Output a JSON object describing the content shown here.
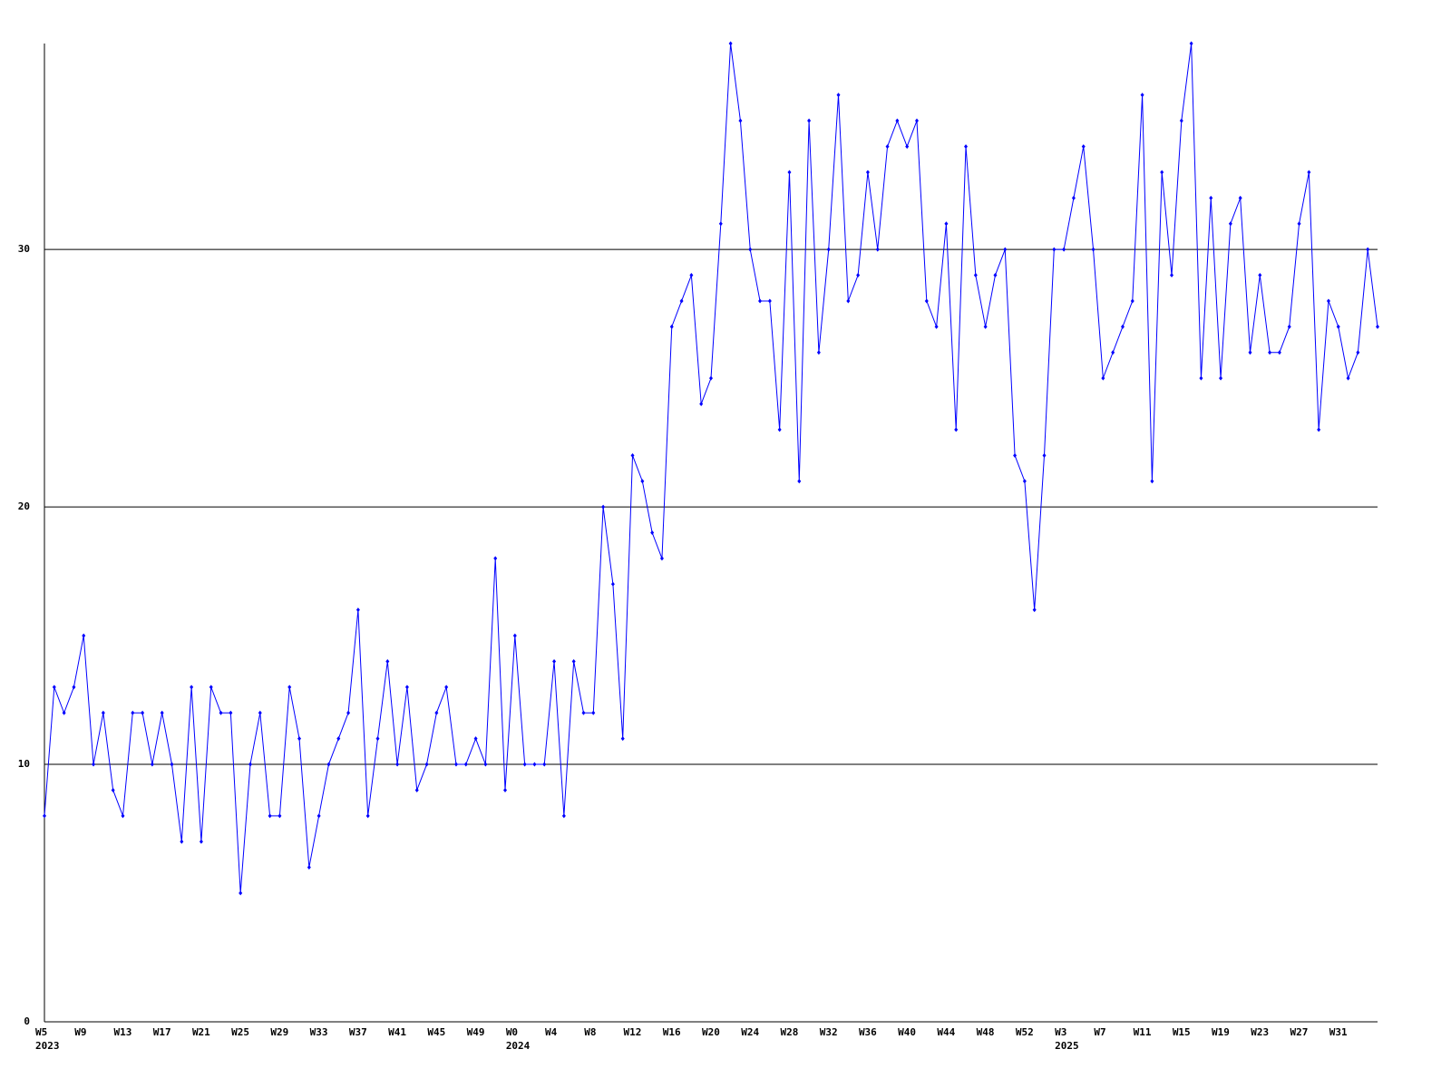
{
  "chart_data": {
    "type": "line",
    "categories": [
      "W5",
      null,
      null,
      null,
      "W9",
      null,
      null,
      null,
      "W13",
      null,
      null,
      null,
      "W17",
      null,
      null,
      null,
      "W21",
      null,
      null,
      null,
      "W25",
      null,
      null,
      null,
      "W29",
      null,
      null,
      null,
      "W33",
      null,
      null,
      null,
      "W37",
      null,
      null,
      null,
      "W41",
      null,
      null,
      null,
      "W45",
      null,
      null,
      null,
      "W49",
      null,
      null,
      null,
      "W0",
      null,
      null,
      null,
      "W4",
      null,
      null,
      null,
      "W8",
      null,
      null,
      null,
      "W12",
      null,
      null,
      null,
      "W16",
      null,
      null,
      null,
      "W20",
      null,
      null,
      null,
      "W24",
      null,
      null,
      null,
      "W28",
      null,
      null,
      null,
      "W32",
      null,
      null,
      null,
      "W36",
      null,
      null,
      null,
      "W40",
      null,
      null,
      null,
      "W44",
      null,
      null,
      null,
      "W48",
      null,
      null,
      null,
      "W52",
      null,
      null,
      null,
      "W3",
      null,
      null,
      null,
      "W7",
      null,
      null,
      null,
      "W11",
      null,
      null,
      null,
      "W15",
      null,
      null,
      null,
      "W19",
      null,
      null,
      null,
      "W23",
      null,
      null,
      null,
      "W27",
      null,
      null,
      null,
      "W31",
      null,
      null,
      null,
      null
    ],
    "category_years": [
      "2023",
      null,
      null,
      null,
      null,
      null,
      null,
      null,
      null,
      null,
      null,
      null,
      null,
      null,
      null,
      null,
      null,
      null,
      null,
      null,
      null,
      null,
      null,
      null,
      null,
      null,
      null,
      null,
      null,
      null,
      null,
      null,
      null,
      null,
      null,
      null,
      null,
      null,
      null,
      null,
      null,
      null,
      null,
      null,
      null,
      null,
      null,
      null,
      "2024",
      null,
      null,
      null,
      null,
      null,
      null,
      null,
      null,
      null,
      null,
      null,
      null,
      null,
      null,
      null,
      null,
      null,
      null,
      null,
      null,
      null,
      null,
      null,
      null,
      null,
      null,
      null,
      null,
      null,
      null,
      null,
      null,
      null,
      null,
      null,
      null,
      null,
      null,
      null,
      null,
      null,
      null,
      null,
      null,
      null,
      null,
      null,
      null,
      null,
      null,
      null,
      null,
      null,
      null,
      null,
      "2025",
      null,
      null,
      null,
      null,
      null,
      null,
      null,
      null,
      null,
      null,
      null,
      null,
      null,
      null,
      null,
      null,
      null,
      null,
      null,
      null,
      null,
      null,
      null,
      null,
      null,
      null,
      null,
      null,
      null,
      null,
      null
    ],
    "series": [
      {
        "color": "#0000ff",
        "values": [
          8,
          13,
          12,
          13,
          15,
          10,
          12,
          9,
          8,
          12,
          12,
          10,
          12,
          10,
          7,
          13,
          7,
          13,
          12,
          12,
          5,
          10,
          12,
          8,
          8,
          13,
          11,
          6,
          8,
          10,
          11,
          12,
          16,
          8,
          11,
          14,
          10,
          13,
          9,
          10,
          12,
          13,
          10,
          10,
          11,
          10,
          18,
          9,
          15,
          10,
          10,
          10,
          14,
          8,
          14,
          12,
          12,
          20,
          17,
          11,
          22,
          21,
          19,
          18,
          27,
          28,
          29,
          24,
          25,
          31,
          38,
          35,
          30,
          28,
          28,
          23,
          33,
          21,
          35,
          26,
          30,
          36,
          28,
          29,
          33,
          30,
          34,
          35,
          34,
          35,
          28,
          27,
          31,
          23,
          34,
          29,
          27,
          29,
          30,
          22,
          21,
          16,
          22,
          30,
          30,
          32,
          34,
          30,
          25,
          26,
          27,
          28,
          36,
          21,
          33,
          29,
          35,
          38,
          25,
          32,
          25,
          31,
          32,
          26,
          29,
          26,
          26,
          27,
          31,
          33,
          23,
          28,
          27,
          25,
          26,
          30,
          27
        ]
      }
    ],
    "ylim": [
      0,
      38
    ],
    "yticks": [
      0,
      10,
      20,
      30
    ],
    "grid": true
  }
}
